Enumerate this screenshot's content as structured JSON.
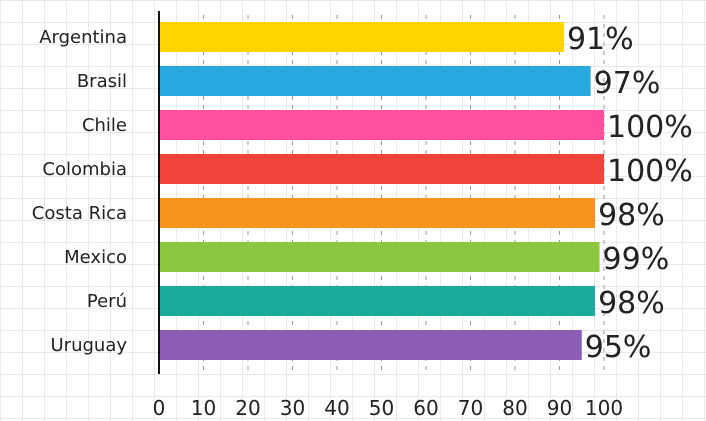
{
  "chart_data": {
    "type": "bar",
    "orientation": "horizontal",
    "title": "",
    "xlabel": "",
    "ylabel": "",
    "categories": [
      "Argentina",
      "Brasil",
      "Chile",
      "Colombia",
      "Costa Rica",
      "Mexico",
      "Perú",
      "Uruguay"
    ],
    "values": [
      91,
      97,
      100,
      100,
      98,
      99,
      98,
      95
    ],
    "value_labels": [
      "91%",
      "97%",
      "100%",
      "100%",
      "98%",
      "99%",
      "98%",
      "95%"
    ],
    "colors": [
      "#FFD400",
      "#29A8E0",
      "#FF4F9E",
      "#F2433A",
      "#F7941D",
      "#8DC63F",
      "#1BAA9B",
      "#8B5DB5"
    ],
    "xlim": [
      0,
      100
    ],
    "xticks": [
      0,
      10,
      20,
      30,
      40,
      50,
      60,
      70,
      80,
      90,
      100
    ],
    "tick_labels": [
      "0",
      "10",
      "20",
      "30",
      "40",
      "50",
      "60",
      "70",
      "80",
      "90",
      "100"
    ],
    "grid": true
  }
}
